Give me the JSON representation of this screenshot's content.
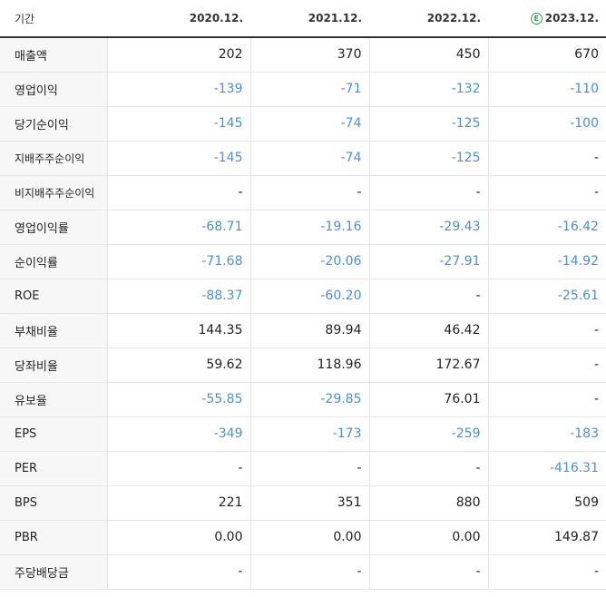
{
  "header": {
    "label": "기간",
    "periods": [
      "2020.12.",
      "2021.12.",
      "2022.12.",
      "2023.12."
    ],
    "estimate_badge": "E"
  },
  "rows": [
    {
      "label": "매출액",
      "values": [
        "202",
        "370",
        "450",
        "670"
      ]
    },
    {
      "label": "영업이익",
      "values": [
        "-139",
        "-71",
        "-132",
        "-110"
      ]
    },
    {
      "label": "당기순이익",
      "values": [
        "-145",
        "-74",
        "-125",
        "-100"
      ]
    },
    {
      "label": "지배주주순이익",
      "values": [
        "-145",
        "-74",
        "-125",
        "-"
      ]
    },
    {
      "label": "비지배주주순이익",
      "values": [
        "-",
        "-",
        "-",
        "-"
      ]
    },
    {
      "label": "영업이익률",
      "values": [
        "-68.71",
        "-19.16",
        "-29.43",
        "-16.42"
      ]
    },
    {
      "label": "순이익률",
      "values": [
        "-71.68",
        "-20.06",
        "-27.91",
        "-14.92"
      ]
    },
    {
      "label": "ROE",
      "values": [
        "-88.37",
        "-60.20",
        "-",
        "-25.61"
      ]
    },
    {
      "label": "부채비율",
      "values": [
        "144.35",
        "89.94",
        "46.42",
        "-"
      ]
    },
    {
      "label": "당좌비율",
      "values": [
        "59.62",
        "118.96",
        "172.67",
        "-"
      ]
    },
    {
      "label": "유보율",
      "values": [
        "-55.85",
        "-29.85",
        "76.01",
        "-"
      ]
    },
    {
      "label": "EPS",
      "values": [
        "-349",
        "-173",
        "-259",
        "-183"
      ]
    },
    {
      "label": "PER",
      "values": [
        "-",
        "-",
        "-",
        "-416.31"
      ]
    },
    {
      "label": "BPS",
      "values": [
        "221",
        "351",
        "880",
        "509"
      ]
    },
    {
      "label": "PBR",
      "values": [
        "0.00",
        "0.00",
        "0.00",
        "149.87"
      ]
    },
    {
      "label": "주당배당금",
      "values": [
        "-",
        "-",
        "-",
        "-"
      ]
    }
  ],
  "colors": {
    "negative": "#4a90d9",
    "positive": "#222222",
    "estimate": "#2aa84a"
  }
}
